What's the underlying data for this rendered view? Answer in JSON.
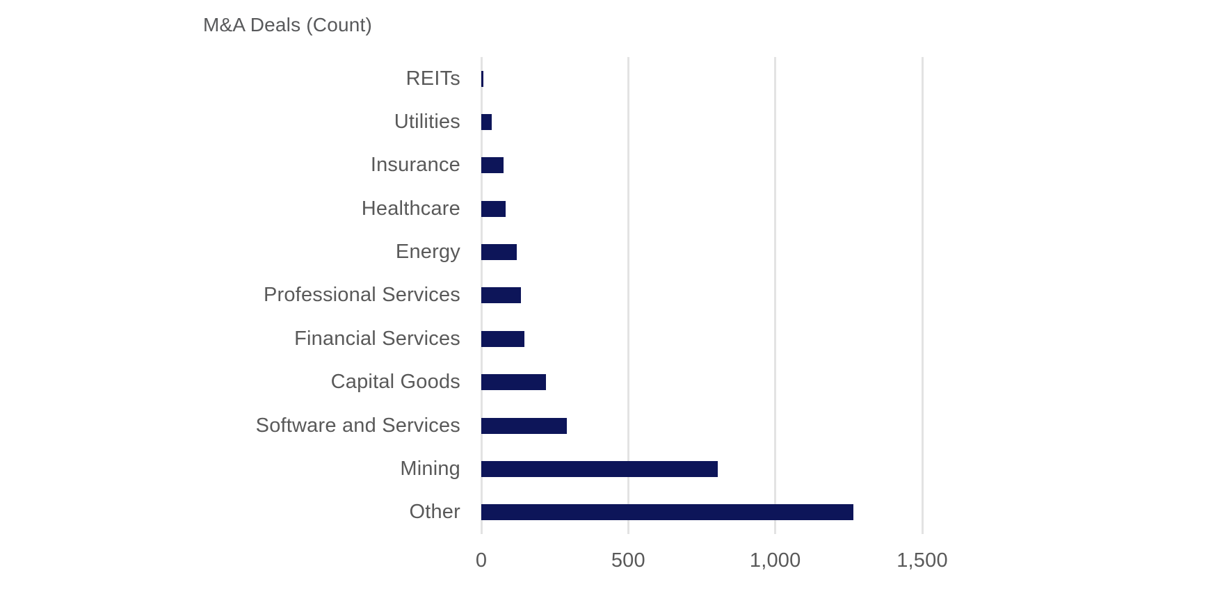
{
  "chart_data": {
    "type": "bar",
    "orientation": "horizontal",
    "title": "M&A Deals (Count)",
    "categories": [
      "REITs",
      "Utilities",
      "Insurance",
      "Healthcare",
      "Energy",
      "Professional Services",
      "Financial Services",
      "Capital Goods",
      "Software and Services",
      "Mining",
      "Other"
    ],
    "values": [
      8,
      35,
      75,
      82,
      120,
      136,
      146,
      220,
      290,
      805,
      1265
    ],
    "xlim": [
      0,
      1500
    ],
    "x_ticks": [
      0,
      500,
      1000,
      1500
    ],
    "x_tick_labels": [
      "0",
      "500",
      "1,000",
      "1,500"
    ],
    "xlabel": "",
    "ylabel": "",
    "grid": "vertical-gridlines-on",
    "legend": "none",
    "bar_color": "#0d1559",
    "label_color": "#595959",
    "title_color": "#58595b",
    "gridline_color": "#e3e3e3"
  }
}
